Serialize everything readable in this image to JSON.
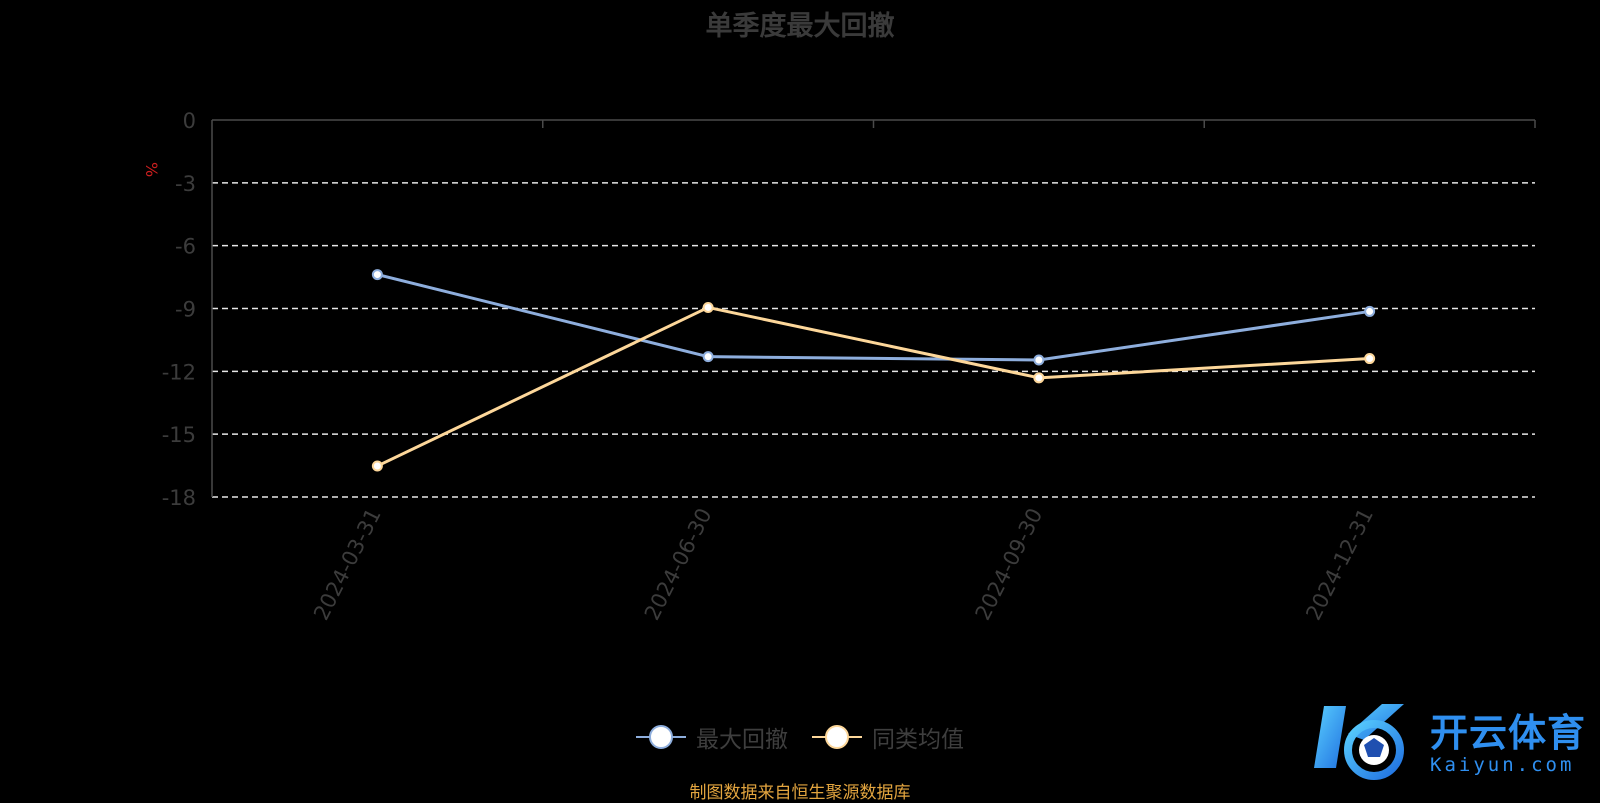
{
  "title": "单季度最大回撤",
  "source": "制图数据来自恒生聚源数据库",
  "logo": {
    "name": "开云体育",
    "sub": "Kaiyun.com"
  },
  "chart_data": {
    "type": "line",
    "categories": [
      "2024-03-31",
      "2024-06-30",
      "2024-09-30",
      "2024-12-31"
    ],
    "ylabel": "%",
    "ylim": [
      -18,
      0
    ],
    "yticks": [
      0,
      -3,
      -6,
      -9,
      -12,
      -15,
      -18
    ],
    "grid": true,
    "legend_position": "bottom-center",
    "series": [
      {
        "name": "最大回撤",
        "color": "#8eaedd",
        "values": [
          -7.38,
          -11.3,
          -11.46,
          -9.14
        ]
      },
      {
        "name": "同类均值",
        "color": "#fdd79a",
        "values": [
          -16.52,
          -8.95,
          -12.31,
          -11.39
        ]
      }
    ]
  }
}
